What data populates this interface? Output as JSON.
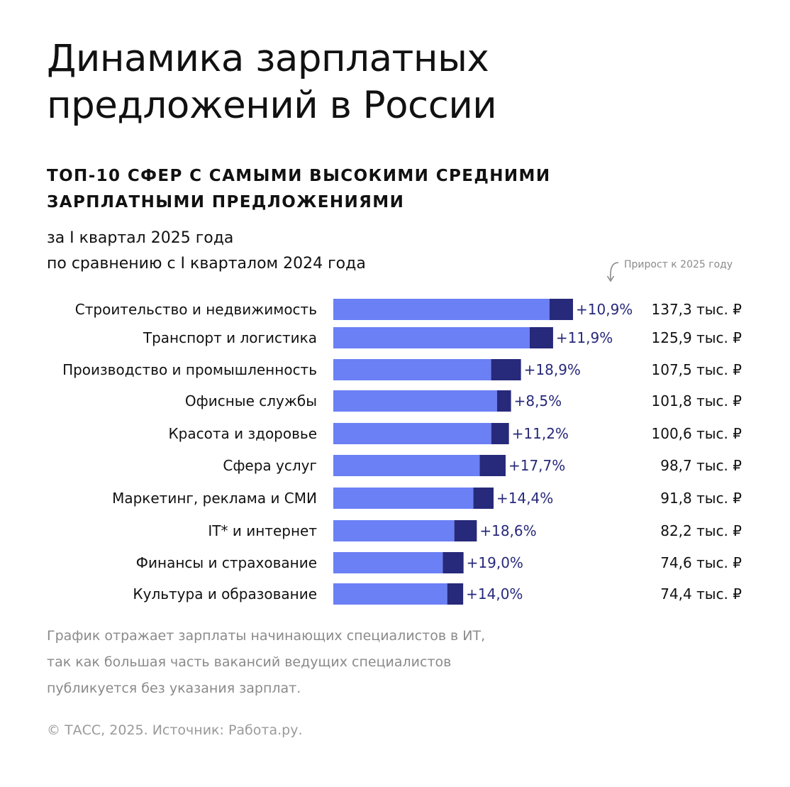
{
  "title_lines": [
    "Динамика зарплатных",
    "предложений в России"
  ],
  "subtitle_lines": [
    "ТОП-10 СФЕР С САМЫМИ ВЫСОКИМИ СРЕДНИМИ",
    "ЗАРПЛАТНЫМИ ПРЕДЛОЖЕНИЯМИ"
  ],
  "period_lines": [
    "за I квартал 2025 года",
    "по сравнению с I кварталом 2024 года"
  ],
  "growth_note": "Прирост к 2025 году",
  "colors": {
    "base_bar": "#6b80f5",
    "growth_bar": "#27297a",
    "growth_text": "#27297a",
    "label_text": "#111111"
  },
  "chart_data": {
    "type": "bar",
    "orientation": "horizontal",
    "stacked": true,
    "value_unit": "тыс. ₽",
    "categories": [
      "Строительство и недвижимость",
      "Транспорт и логистика",
      "Производство и промышленность",
      "Офисные службы",
      "Красота и здоровье",
      "Сфера услуг",
      "Маркетинг, реклама и СМИ",
      "IT* и интернет",
      "Финансы и страхование",
      "Культура и образование"
    ],
    "salary_2025": [
      137.3,
      125.9,
      107.5,
      101.8,
      100.6,
      98.7,
      91.8,
      82.2,
      74.6,
      74.4
    ],
    "salary_labels": [
      "137,3 тыс. ₽",
      "125,9 тыс. ₽",
      "107,5 тыс. ₽",
      "101,8 тыс. ₽",
      "100,6 тыс. ₽",
      "98,7 тыс. ₽",
      "91,8 тыс. ₽",
      "82,2 тыс. ₽",
      "74,6 тыс. ₽",
      "74,4 тыс. ₽"
    ],
    "growth_pct": [
      10.9,
      11.9,
      18.9,
      8.5,
      11.2,
      17.7,
      14.4,
      18.6,
      19.0,
      14.0
    ],
    "growth_labels": [
      "+10,9%",
      "+11,9%",
      "+18,9%",
      "+8,5%",
      "+11,2%",
      "+17,7%",
      "+14,4%",
      "+18,6%",
      "+19,0%",
      "+14,0%"
    ],
    "grid": false,
    "legend": "none"
  },
  "footnote_lines": [
    "График отражает зарплаты начинающих специалистов в ИТ,",
    "так как большая часть вакансий ведущих специалистов",
    "публикуется без указания зарплат."
  ],
  "credit": "© ТАСС, 2025. Источник: Работа.ру."
}
